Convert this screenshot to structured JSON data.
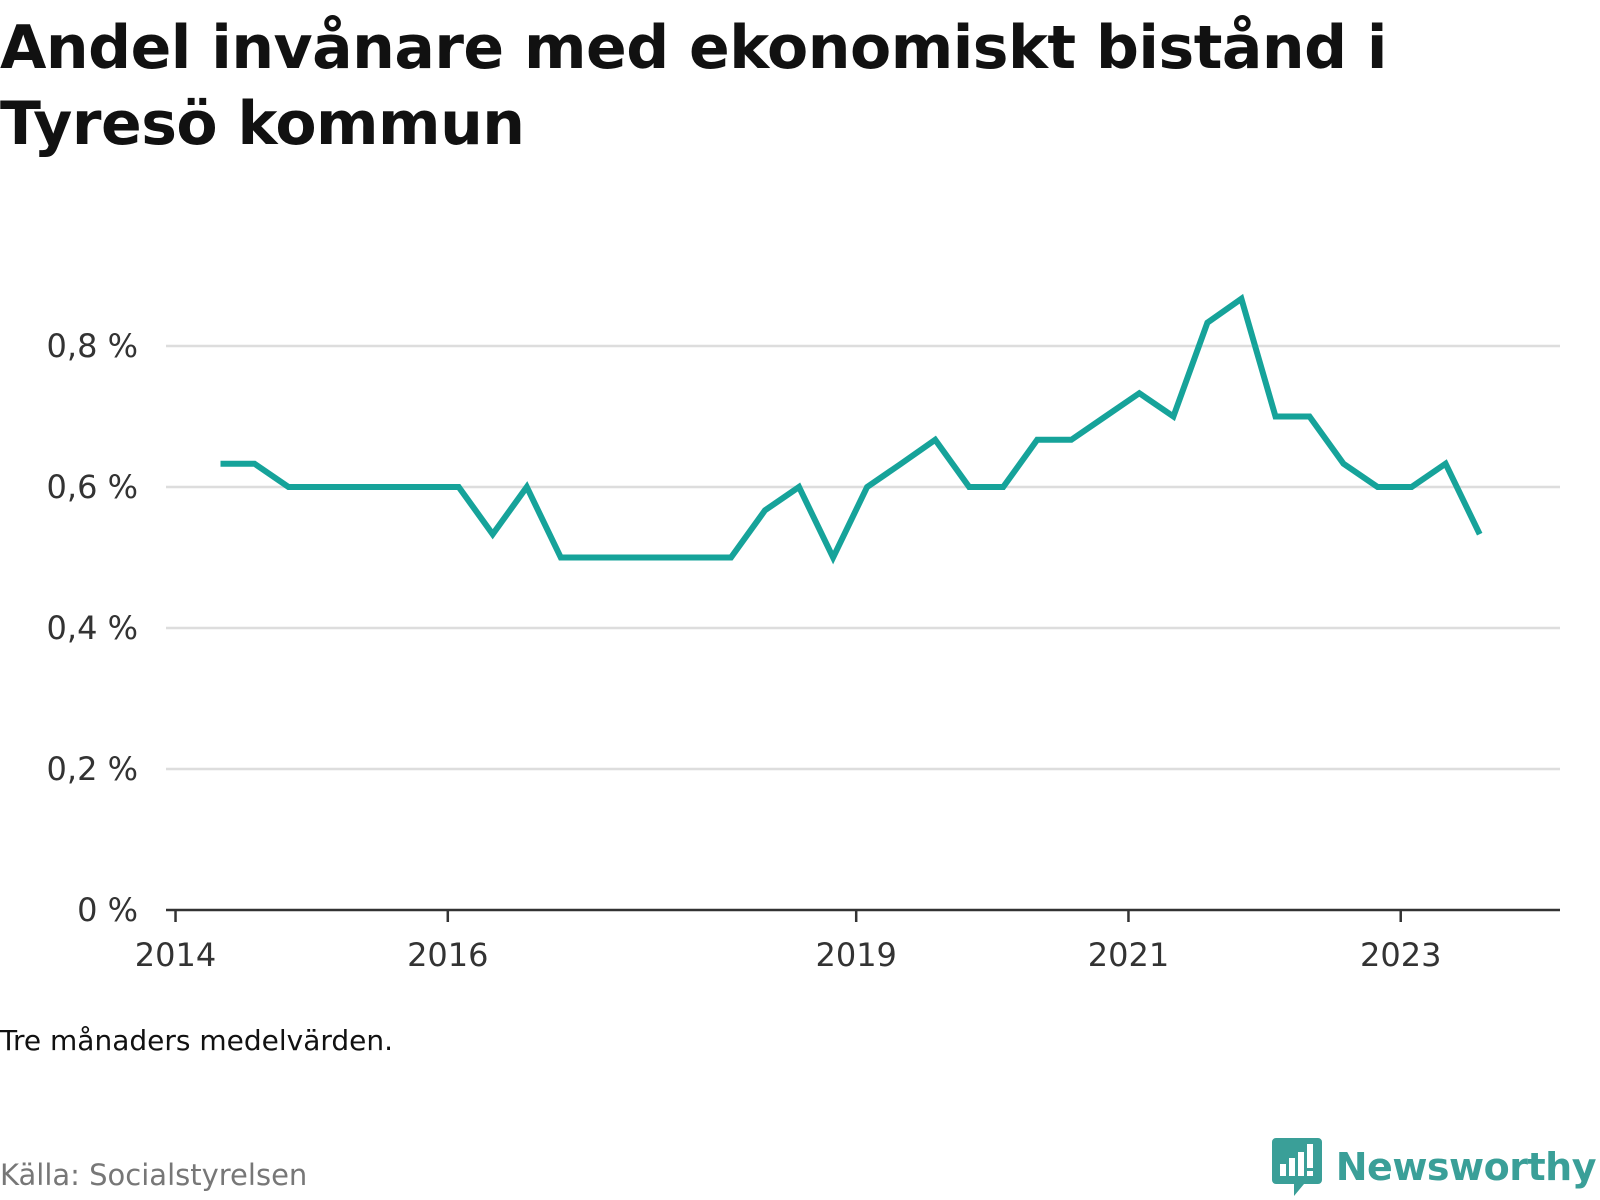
{
  "title": "Andel invånare med ekonomiskt bistånd i Tyresö kommun",
  "note": "Tre månaders medelvärden.",
  "source": "Källa: Socialstyrelsen",
  "brand": {
    "name": "Newsworthy",
    "icon": "bar-chart-speech-bubble-icon",
    "color": "#3a9f98"
  },
  "chart_data": {
    "type": "line",
    "title": "Andel invånare med ekonomiskt bistånd i Tyresö kommun",
    "xlabel": "",
    "ylabel": "",
    "ylim": [
      0,
      0.9
    ],
    "yticks": [
      0,
      0.2,
      0.4,
      0.6,
      0.8
    ],
    "ytick_labels": [
      "0 %",
      "0,2 %",
      "0,4 %",
      "0,6 %",
      "0,8 %"
    ],
    "xlim": [
      2014.0,
      2024.0
    ],
    "xticks": [
      2014,
      2016,
      2019,
      2021,
      2023
    ],
    "xtick_labels": [
      "2014",
      "2016",
      "2019",
      "2021",
      "2023"
    ],
    "grid": true,
    "line_color": "#16a39a",
    "series": [
      {
        "name": "",
        "x": [
          2014.33,
          2014.58,
          2014.83,
          2015.08,
          2015.33,
          2015.58,
          2015.83,
          2016.08,
          2016.33,
          2016.58,
          2016.83,
          2017.08,
          2017.33,
          2017.58,
          2017.83,
          2018.08,
          2018.33,
          2018.58,
          2018.83,
          2019.08,
          2019.33,
          2019.58,
          2019.83,
          2020.08,
          2020.33,
          2020.58,
          2020.83,
          2021.08,
          2021.33,
          2021.58,
          2021.83,
          2022.08,
          2022.33,
          2022.58,
          2022.83,
          2023.08,
          2023.33,
          2023.58
        ],
        "values": [
          0.633,
          0.633,
          0.6,
          0.6,
          0.6,
          0.6,
          0.6,
          0.6,
          0.533,
          0.6,
          0.5,
          0.5,
          0.5,
          0.5,
          0.5,
          0.5,
          0.567,
          0.6,
          0.5,
          0.6,
          0.633,
          0.667,
          0.6,
          0.6,
          0.667,
          0.667,
          0.7,
          0.733,
          0.7,
          0.833,
          0.867,
          0.7,
          0.7,
          0.633,
          0.6,
          0.6,
          0.633,
          0.533
        ]
      }
    ]
  }
}
